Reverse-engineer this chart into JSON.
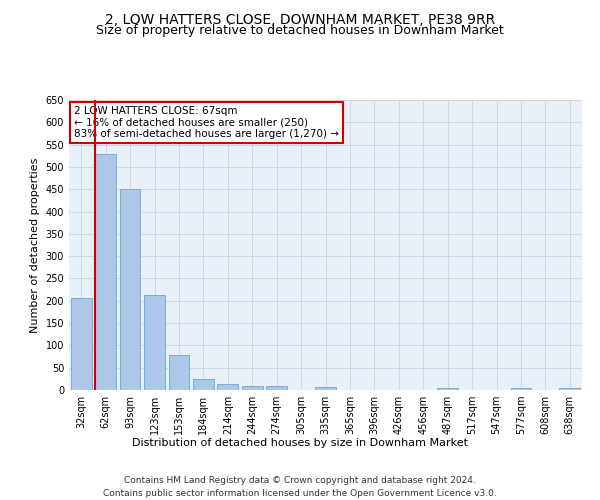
{
  "title": "2, LOW HATTERS CLOSE, DOWNHAM MARKET, PE38 9RR",
  "subtitle": "Size of property relative to detached houses in Downham Market",
  "xlabel": "Distribution of detached houses by size in Downham Market",
  "ylabel": "Number of detached properties",
  "categories": [
    "32sqm",
    "62sqm",
    "93sqm",
    "123sqm",
    "153sqm",
    "184sqm",
    "214sqm",
    "244sqm",
    "274sqm",
    "305sqm",
    "335sqm",
    "365sqm",
    "396sqm",
    "426sqm",
    "456sqm",
    "487sqm",
    "517sqm",
    "547sqm",
    "577sqm",
    "608sqm",
    "638sqm"
  ],
  "values": [
    207,
    530,
    450,
    212,
    78,
    25,
    13,
    10,
    8,
    0,
    6,
    0,
    0,
    0,
    0,
    5,
    0,
    0,
    5,
    0,
    5
  ],
  "bar_color": "#aec6e8",
  "bar_edge_color": "#7aaed6",
  "vline_color": "#cc0000",
  "annotation_text": "2 LOW HATTERS CLOSE: 67sqm\n← 16% of detached houses are smaller (250)\n83% of semi-detached houses are larger (1,270) →",
  "annotation_box_color": "#ffffff",
  "annotation_box_edge_color": "#cc0000",
  "ylim": [
    0,
    650
  ],
  "yticks": [
    0,
    50,
    100,
    150,
    200,
    250,
    300,
    350,
    400,
    450,
    500,
    550,
    600,
    650
  ],
  "grid_color": "#cdd9e8",
  "bg_color": "#e8f0f8",
  "footer_line1": "Contains HM Land Registry data © Crown copyright and database right 2024.",
  "footer_line2": "Contains public sector information licensed under the Open Government Licence v3.0.",
  "title_fontsize": 10,
  "subtitle_fontsize": 9,
  "axis_label_fontsize": 8,
  "tick_fontsize": 7,
  "footer_fontsize": 6.5,
  "annotation_fontsize": 7.5
}
